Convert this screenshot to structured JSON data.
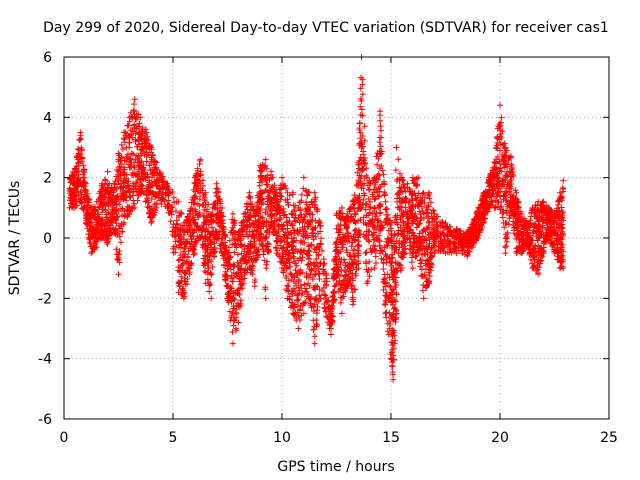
{
  "chart_data": {
    "type": "scatter",
    "title": "Day 299 of 2020, Sidereal Day-to-day VTEC variation (SDTVAR) for receiver cas1",
    "xlabel": "GPS time / hours",
    "ylabel": "SDTVAR / TECUs",
    "xlim": [
      0,
      25
    ],
    "ylim": [
      -6,
      6
    ],
    "xticks": [
      0,
      5,
      10,
      15,
      20,
      25
    ],
    "yticks": [
      -6,
      -4,
      -2,
      0,
      2,
      4,
      6
    ],
    "grid": true,
    "marker": "+",
    "color": "#ff0000",
    "envelope": [
      {
        "x": 0.25,
        "ymin": 1.0,
        "ymax": 2.0
      },
      {
        "x": 0.5,
        "ymin": 1.0,
        "ymax": 2.3
      },
      {
        "x": 0.75,
        "ymin": 1.2,
        "ymax": 3.5
      },
      {
        "x": 1.0,
        "ymin": 0.5,
        "ymax": 1.8
      },
      {
        "x": 1.25,
        "ymin": -0.5,
        "ymax": 1.0
      },
      {
        "x": 1.5,
        "ymin": -0.3,
        "ymax": 1.2
      },
      {
        "x": 1.75,
        "ymin": 0.0,
        "ymax": 1.8
      },
      {
        "x": 2.0,
        "ymin": -0.2,
        "ymax": 2.2
      },
      {
        "x": 2.25,
        "ymin": 0.3,
        "ymax": 1.6
      },
      {
        "x": 2.5,
        "ymin": -1.2,
        "ymax": 2.8
      },
      {
        "x": 2.75,
        "ymin": 0.5,
        "ymax": 3.5
      },
      {
        "x": 3.0,
        "ymin": 0.8,
        "ymax": 4.0
      },
      {
        "x": 3.25,
        "ymin": 1.0,
        "ymax": 4.6
      },
      {
        "x": 3.5,
        "ymin": 1.5,
        "ymax": 4.0
      },
      {
        "x": 3.75,
        "ymin": 1.2,
        "ymax": 3.6
      },
      {
        "x": 4.0,
        "ymin": 0.5,
        "ymax": 3.0
      },
      {
        "x": 4.25,
        "ymin": 1.0,
        "ymax": 2.5
      },
      {
        "x": 4.75,
        "ymin": 1.0,
        "ymax": 1.8
      },
      {
        "x": 5.25,
        "ymin": -1.8,
        "ymax": 1.2
      },
      {
        "x": 5.5,
        "ymin": -2.0,
        "ymax": 0.5
      },
      {
        "x": 5.75,
        "ymin": -1.2,
        "ymax": 0.8
      },
      {
        "x": 6.0,
        "ymin": -0.5,
        "ymax": 2.0
      },
      {
        "x": 6.25,
        "ymin": 0.0,
        "ymax": 2.6
      },
      {
        "x": 6.5,
        "ymin": -1.5,
        "ymax": 1.5
      },
      {
        "x": 6.75,
        "ymin": -2.0,
        "ymax": 0.8
      },
      {
        "x": 7.0,
        "ymin": 0.0,
        "ymax": 1.8
      },
      {
        "x": 7.25,
        "ymin": -0.5,
        "ymax": 1.0
      },
      {
        "x": 7.5,
        "ymin": -2.0,
        "ymax": -0.5
      },
      {
        "x": 7.75,
        "ymin": -3.5,
        "ymax": 0.8
      },
      {
        "x": 8.0,
        "ymin": -2.8,
        "ymax": 0.2
      },
      {
        "x": 8.25,
        "ymin": -1.5,
        "ymax": 0.8
      },
      {
        "x": 8.5,
        "ymin": -1.0,
        "ymax": 1.5
      },
      {
        "x": 8.75,
        "ymin": -1.6,
        "ymax": 0.8
      },
      {
        "x": 9.0,
        "ymin": 0.0,
        "ymax": 2.4
      },
      {
        "x": 9.25,
        "ymin": -2.0,
        "ymax": 2.6
      },
      {
        "x": 9.5,
        "ymin": 0.5,
        "ymax": 2.2
      },
      {
        "x": 9.75,
        "ymin": -0.5,
        "ymax": 1.5
      },
      {
        "x": 10.0,
        "ymin": -1.0,
        "ymax": 2.0
      },
      {
        "x": 10.25,
        "ymin": -2.0,
        "ymax": 1.5
      },
      {
        "x": 10.5,
        "ymin": -2.5,
        "ymax": 1.5
      },
      {
        "x": 10.75,
        "ymin": -3.0,
        "ymax": 1.0
      },
      {
        "x": 11.0,
        "ymin": -2.5,
        "ymax": 2.0
      },
      {
        "x": 11.25,
        "ymin": -2.0,
        "ymax": 1.5
      },
      {
        "x": 11.5,
        "ymin": -3.5,
        "ymax": 1.5
      },
      {
        "x": 11.75,
        "ymin": -2.0,
        "ymax": 0.5
      },
      {
        "x": 12.25,
        "ymin": -3.2,
        "ymax": -2.5
      },
      {
        "x": 12.5,
        "ymin": -1.5,
        "ymax": 0.8
      },
      {
        "x": 12.75,
        "ymin": -2.5,
        "ymax": 1.0
      },
      {
        "x": 13.0,
        "ymin": -1.5,
        "ymax": 0.8
      },
      {
        "x": 13.25,
        "ymin": -2.2,
        "ymax": 1.2
      },
      {
        "x": 13.5,
        "ymin": -1.0,
        "ymax": 2.5
      },
      {
        "x": 13.65,
        "ymin": 1.0,
        "ymax": 6.0
      },
      {
        "x": 13.9,
        "ymin": -1.5,
        "ymax": 2.0
      },
      {
        "x": 14.25,
        "ymin": -1.0,
        "ymax": 2.0
      },
      {
        "x": 14.5,
        "ymin": -0.5,
        "ymax": 4.2
      },
      {
        "x": 14.75,
        "ymin": -2.5,
        "ymax": 1.2
      },
      {
        "x": 15.0,
        "ymin": -4.0,
        "ymax": 0.5
      },
      {
        "x": 15.1,
        "ymin": -4.7,
        "ymax": -1.0
      },
      {
        "x": 15.25,
        "ymin": -2.5,
        "ymax": 3.0
      },
      {
        "x": 15.5,
        "ymin": -1.0,
        "ymax": 2.0
      },
      {
        "x": 15.75,
        "ymin": 0.0,
        "ymax": 1.8
      },
      {
        "x": 16.0,
        "ymin": -1.0,
        "ymax": 2.0
      },
      {
        "x": 16.25,
        "ymin": -0.5,
        "ymax": 2.0
      },
      {
        "x": 16.5,
        "ymin": -2.0,
        "ymax": 1.5
      },
      {
        "x": 16.75,
        "ymin": -1.5,
        "ymax": 1.5
      },
      {
        "x": 17.0,
        "ymin": -0.5,
        "ymax": 0.8
      },
      {
        "x": 17.5,
        "ymin": -0.5,
        "ymax": 0.5
      },
      {
        "x": 18.0,
        "ymin": -0.5,
        "ymax": 0.3
      },
      {
        "x": 18.5,
        "ymin": -0.6,
        "ymax": 0.2
      },
      {
        "x": 18.75,
        "ymin": -0.3,
        "ymax": 0.5
      },
      {
        "x": 19.0,
        "ymin": 0.0,
        "ymax": 1.0
      },
      {
        "x": 19.25,
        "ymin": 0.5,
        "ymax": 1.5
      },
      {
        "x": 19.5,
        "ymin": 1.0,
        "ymax": 2.0
      },
      {
        "x": 19.75,
        "ymin": 1.0,
        "ymax": 2.5
      },
      {
        "x": 20.0,
        "ymin": 1.0,
        "ymax": 4.4
      },
      {
        "x": 20.25,
        "ymin": -0.5,
        "ymax": 3.0
      },
      {
        "x": 20.5,
        "ymin": 1.0,
        "ymax": 2.7
      },
      {
        "x": 20.75,
        "ymin": -0.5,
        "ymax": 1.5
      },
      {
        "x": 21.0,
        "ymin": -0.5,
        "ymax": 0.8
      },
      {
        "x": 21.25,
        "ymin": -0.3,
        "ymax": 0.5
      },
      {
        "x": 21.5,
        "ymin": -1.0,
        "ymax": 1.0
      },
      {
        "x": 21.75,
        "ymin": -1.2,
        "ymax": 1.2
      },
      {
        "x": 22.0,
        "ymin": -0.5,
        "ymax": 1.2
      },
      {
        "x": 22.25,
        "ymin": 0.0,
        "ymax": 1.0
      },
      {
        "x": 22.5,
        "ymin": -0.5,
        "ymax": 0.8
      },
      {
        "x": 22.75,
        "ymin": -1.0,
        "ymax": 1.5
      },
      {
        "x": 22.9,
        "ymin": -1.0,
        "ymax": 1.9
      }
    ]
  }
}
